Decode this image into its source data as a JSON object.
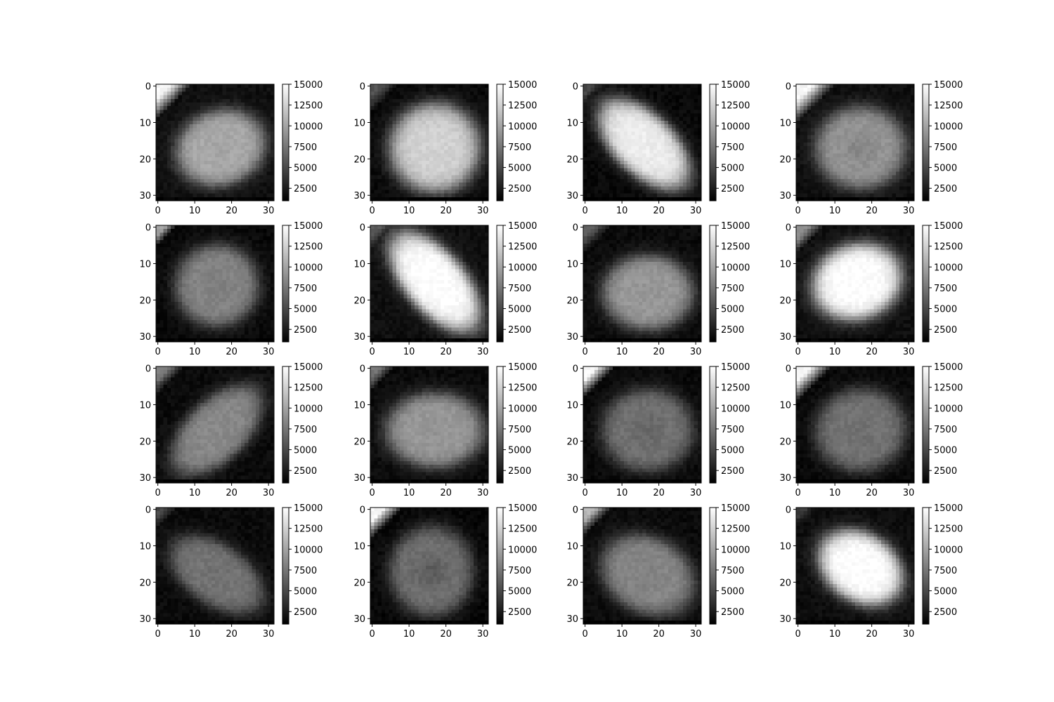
{
  "chart_data": {
    "type": "heatmap",
    "layout": {
      "rows": 4,
      "cols": 4
    },
    "colormap": [
      "#000000",
      "#ffffff"
    ],
    "image_size": [
      32,
      32
    ],
    "x_ticks": [
      0,
      10,
      20,
      30
    ],
    "y_ticks": [
      0,
      10,
      20,
      30
    ],
    "xlim": [
      -0.5,
      31.5
    ],
    "ylim": [
      31.5,
      -0.5
    ],
    "colorbar": {
      "range": [
        1000,
        15000
      ],
      "ticks": [
        2500,
        5000,
        7500,
        10000,
        12500,
        15000
      ]
    },
    "panels": [
      {
        "cx": 17,
        "cy": 17,
        "rx": 12,
        "ry": 10,
        "angle": -20,
        "peak": 10500,
        "bg": 1800,
        "corner": 14500,
        "corner_size": 9,
        "dip": 500
      },
      {
        "cx": 17,
        "cy": 17,
        "rx": 12,
        "ry": 12,
        "angle": 0,
        "peak": 12500,
        "bg": 1500,
        "corner": 5500,
        "corner_size": 7,
        "dip": 0
      },
      {
        "cx": 16,
        "cy": 16,
        "rx": 15,
        "ry": 8,
        "angle": 45,
        "peak": 14000,
        "bg": 1500,
        "corner": 5000,
        "corner_size": 5,
        "dip": 0
      },
      {
        "cx": 17,
        "cy": 17,
        "rx": 12,
        "ry": 11,
        "angle": 0,
        "peak": 9500,
        "bg": 1800,
        "corner": 14500,
        "corner_size": 10,
        "dip": 1200
      },
      {
        "cx": 16,
        "cy": 16,
        "rx": 11,
        "ry": 11,
        "angle": 0,
        "peak": 8500,
        "bg": 1500,
        "corner": 10000,
        "corner_size": 5,
        "dip": 600
      },
      {
        "cx": 17,
        "cy": 15,
        "rx": 16,
        "ry": 8,
        "angle": 50,
        "peak": 15000,
        "bg": 1800,
        "corner": 6000,
        "corner_size": 6,
        "dip": 0
      },
      {
        "cx": 17,
        "cy": 18,
        "rx": 12,
        "ry": 10,
        "angle": 0,
        "peak": 9500,
        "bg": 1600,
        "corner": 6000,
        "corner_size": 7,
        "dip": 300
      },
      {
        "cx": 16,
        "cy": 15,
        "rx": 12,
        "ry": 10,
        "angle": -20,
        "peak": 15000,
        "bg": 1800,
        "corner": 9000,
        "corner_size": 7,
        "dip": 0
      },
      {
        "cx": 16,
        "cy": 17,
        "rx": 15,
        "ry": 8,
        "angle": -45,
        "peak": 8500,
        "bg": 1600,
        "corner": 8000,
        "corner_size": 7,
        "dip": 0
      },
      {
        "cx": 17,
        "cy": 17,
        "rx": 13,
        "ry": 10,
        "angle": 0,
        "peak": 9500,
        "bg": 1600,
        "corner": 7500,
        "corner_size": 6,
        "dip": 400
      },
      {
        "cx": 17,
        "cy": 17,
        "rx": 12,
        "ry": 11,
        "angle": 0,
        "peak": 7500,
        "bg": 1500,
        "corner": 14500,
        "corner_size": 8,
        "dip": 900
      },
      {
        "cx": 17,
        "cy": 17,
        "rx": 12,
        "ry": 11,
        "angle": -15,
        "peak": 7500,
        "bg": 1500,
        "corner": 14500,
        "corner_size": 9,
        "dip": 400
      },
      {
        "cx": 16,
        "cy": 18,
        "rx": 14,
        "ry": 8,
        "angle": 35,
        "peak": 7500,
        "bg": 1600,
        "corner": 5000,
        "corner_size": 5,
        "dip": 300
      },
      {
        "cx": 16,
        "cy": 17,
        "rx": 11,
        "ry": 12,
        "angle": 0,
        "peak": 7500,
        "bg": 1400,
        "corner": 14500,
        "corner_size": 8,
        "dip": 1500
      },
      {
        "cx": 17,
        "cy": 18,
        "rx": 13,
        "ry": 10,
        "angle": 30,
        "peak": 8500,
        "bg": 1600,
        "corner": 11000,
        "corner_size": 7,
        "dip": 400
      },
      {
        "cx": 17,
        "cy": 16,
        "rx": 12,
        "ry": 9,
        "angle": 35,
        "peak": 15000,
        "bg": 1700,
        "corner": 4000,
        "corner_size": 5,
        "dip": 0
      }
    ]
  }
}
